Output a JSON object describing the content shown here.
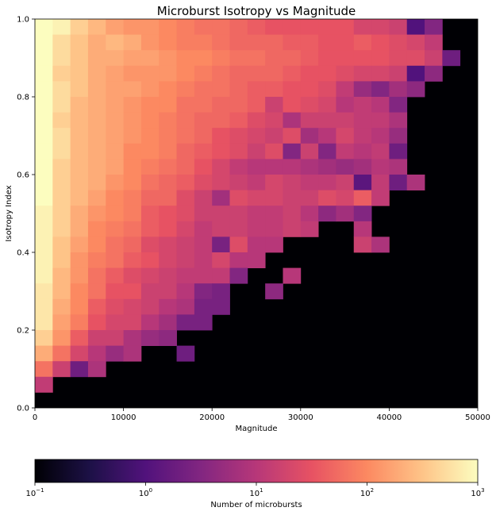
{
  "chart_data": {
    "type": "heatmap",
    "title": "Microburst Isotropy vs Magnitude",
    "xlabel": "Magnitude",
    "ylabel": "Isotropy Index",
    "xlim": [
      0,
      50000
    ],
    "ylim": [
      0,
      1
    ],
    "x_ticks": [
      0,
      10000,
      20000,
      30000,
      40000,
      50000
    ],
    "x_tick_labels": [
      "0",
      "10000",
      "20000",
      "30000",
      "40000",
      "50000"
    ],
    "y_ticks": [
      0.0,
      0.2,
      0.4,
      0.6,
      0.8,
      1.0
    ],
    "y_tick_labels": [
      "0.0",
      "0.2",
      "0.4",
      "0.6",
      "0.8",
      "1.0"
    ],
    "grid": false,
    "x_bins": 25,
    "x_bin_width": 2000,
    "y_bins": 25,
    "y_bin_width": 0.04,
    "colormap": "magma",
    "color_scale": "log",
    "colorbar": {
      "label": "Number of microbursts",
      "range": [
        0.1,
        1000
      ],
      "ticks": [
        0.1,
        1,
        10,
        100,
        1000
      ],
      "tick_bases": [
        "10",
        "10",
        "10",
        "10",
        "10"
      ],
      "tick_exponents": [
        "−1",
        "0",
        "1",
        "2",
        "3"
      ],
      "placement": "bottom"
    },
    "note_rows": "rows[0] is the top row (isotropy 0.96-1.00); each value is log10(count); null = empty (drawn black)",
    "rows_log10": [
      [
        3.0,
        2.9,
        2.6,
        2.4,
        2.2,
        2.1,
        2.1,
        2.0,
        1.9,
        1.8,
        1.8,
        1.7,
        1.6,
        1.5,
        1.5,
        1.5,
        1.5,
        1.5,
        1.3,
        1.3,
        1.2,
        0.0,
        0.5,
        null,
        null
      ],
      [
        3.0,
        2.7,
        2.5,
        2.3,
        2.4,
        2.3,
        2.1,
        2.0,
        1.9,
        1.9,
        1.8,
        1.7,
        1.7,
        1.7,
        1.6,
        1.6,
        1.5,
        1.5,
        1.6,
        1.5,
        1.4,
        1.3,
        1.1,
        null,
        null
      ],
      [
        3.0,
        2.7,
        2.5,
        2.3,
        2.3,
        2.2,
        2.2,
        2.1,
        2.0,
        2.0,
        1.9,
        1.8,
        1.8,
        1.7,
        1.7,
        1.6,
        1.5,
        1.5,
        1.5,
        1.5,
        1.4,
        1.4,
        1.2,
        0.3,
        null
      ],
      [
        3.0,
        2.6,
        2.5,
        2.3,
        2.2,
        2.1,
        2.1,
        2.1,
        2.0,
        1.9,
        1.8,
        1.7,
        1.7,
        1.7,
        1.6,
        1.5,
        1.5,
        1.4,
        1.3,
        1.3,
        1.2,
        0.0,
        0.6,
        null,
        null
      ],
      [
        3.0,
        2.7,
        2.5,
        2.3,
        2.2,
        2.2,
        2.1,
        2.0,
        1.9,
        1.8,
        1.8,
        1.7,
        1.6,
        1.6,
        1.5,
        1.5,
        1.4,
        1.1,
        0.7,
        0.5,
        0.8,
        0.6,
        null,
        null,
        null
      ],
      [
        3.0,
        2.7,
        2.4,
        2.3,
        2.2,
        2.1,
        2.0,
        2.0,
        1.8,
        1.8,
        1.7,
        1.7,
        1.6,
        1.2,
        1.5,
        1.4,
        1.3,
        1.0,
        1.1,
        1.0,
        0.5,
        null,
        null,
        null,
        null
      ],
      [
        3.0,
        2.6,
        2.4,
        2.3,
        2.2,
        2.1,
        2.0,
        1.9,
        1.8,
        1.7,
        1.7,
        1.6,
        1.4,
        1.3,
        0.9,
        1.2,
        1.2,
        1.2,
        1.1,
        1.1,
        0.9,
        null,
        null,
        null,
        null
      ],
      [
        3.0,
        2.7,
        2.4,
        2.3,
        2.2,
        2.1,
        2.0,
        1.9,
        1.8,
        1.7,
        1.5,
        1.4,
        1.3,
        1.2,
        1.4,
        0.8,
        1.0,
        1.3,
        1.1,
        1.0,
        0.7,
        null,
        null,
        null,
        null
      ],
      [
        3.0,
        2.7,
        2.4,
        2.3,
        2.2,
        2.0,
        2.0,
        1.9,
        1.7,
        1.6,
        1.5,
        1.4,
        1.2,
        1.4,
        0.5,
        1.2,
        0.5,
        1.1,
        1.0,
        1.1,
        0.3,
        null,
        null,
        null,
        null
      ],
      [
        3.0,
        2.6,
        2.4,
        2.3,
        2.2,
        2.0,
        1.9,
        1.8,
        1.7,
        1.5,
        1.3,
        1.1,
        1.0,
        1.0,
        1.0,
        0.9,
        0.8,
        0.7,
        0.8,
        1.0,
        0.9,
        null,
        null,
        null,
        null
      ],
      [
        3.0,
        2.6,
        2.4,
        2.3,
        2.1,
        2.0,
        1.8,
        1.7,
        1.6,
        1.4,
        1.3,
        1.2,
        1.1,
        1.3,
        1.2,
        1.1,
        1.1,
        1.2,
        0.1,
        1.1,
        0.3,
        0.9,
        null,
        null,
        null
      ],
      [
        3.0,
        2.6,
        2.4,
        2.2,
        2.0,
        1.9,
        1.7,
        1.7,
        1.4,
        1.2,
        0.8,
        1.4,
        1.3,
        1.3,
        1.2,
        1.2,
        1.4,
        1.3,
        1.6,
        1.1,
        null,
        null,
        null,
        null,
        null
      ],
      [
        2.9,
        2.6,
        2.3,
        2.1,
        2.0,
        1.9,
        1.6,
        1.5,
        1.4,
        1.2,
        1.2,
        1.2,
        1.1,
        1.1,
        1.2,
        1.0,
        0.6,
        0.8,
        0.5,
        null,
        null,
        null,
        null,
        null,
        null
      ],
      [
        2.9,
        2.6,
        2.3,
        2.0,
        1.9,
        1.8,
        1.6,
        1.5,
        1.3,
        1.1,
        1.2,
        1.2,
        1.1,
        1.1,
        1.2,
        1.1,
        null,
        null,
        1.0,
        null,
        null,
        null,
        null,
        null,
        null
      ],
      [
        2.9,
        2.5,
        2.2,
        2.0,
        1.8,
        1.7,
        1.4,
        1.3,
        1.2,
        1.1,
        0.4,
        1.4,
        1.0,
        1.0,
        null,
        null,
        null,
        null,
        1.2,
        0.9,
        null,
        null,
        null,
        null,
        null
      ],
      [
        2.9,
        2.5,
        2.1,
        1.9,
        1.8,
        1.6,
        1.5,
        1.3,
        1.2,
        1.1,
        1.3,
        1.0,
        1.0,
        null,
        null,
        null,
        null,
        null,
        null,
        null,
        null,
        null,
        null,
        null,
        null
      ],
      [
        2.9,
        2.4,
        2.1,
        1.8,
        1.6,
        1.4,
        1.3,
        1.2,
        1.1,
        1.1,
        1.1,
        0.5,
        null,
        null,
        1.0,
        null,
        null,
        null,
        null,
        null,
        null,
        null,
        null,
        null,
        null
      ],
      [
        2.8,
        2.4,
        2.0,
        1.8,
        1.5,
        1.5,
        1.2,
        1.2,
        1.0,
        0.5,
        0.4,
        null,
        null,
        0.6,
        null,
        null,
        null,
        null,
        null,
        null,
        null,
        null,
        null,
        null,
        null
      ],
      [
        2.8,
        2.3,
        2.0,
        1.6,
        1.4,
        1.3,
        1.2,
        1.0,
        0.9,
        0.4,
        0.4,
        null,
        null,
        null,
        null,
        null,
        null,
        null,
        null,
        null,
        null,
        null,
        null,
        null,
        null
      ],
      [
        2.8,
        2.2,
        1.9,
        1.5,
        1.3,
        1.3,
        1.0,
        0.8,
        0.4,
        0.4,
        null,
        null,
        null,
        null,
        null,
        null,
        null,
        null,
        null,
        null,
        null,
        null,
        null,
        null,
        null
      ],
      [
        2.6,
        2.1,
        1.6,
        1.2,
        1.2,
        0.9,
        0.7,
        0.6,
        null,
        null,
        null,
        null,
        null,
        null,
        null,
        null,
        null,
        null,
        null,
        null,
        null,
        null,
        null,
        null,
        null
      ],
      [
        2.3,
        1.8,
        1.3,
        1.0,
        0.7,
        0.9,
        null,
        null,
        0.3,
        null,
        null,
        null,
        null,
        null,
        null,
        null,
        null,
        null,
        null,
        null,
        null,
        null,
        null,
        null,
        null
      ],
      [
        1.8,
        1.2,
        0.3,
        0.9,
        null,
        null,
        null,
        null,
        null,
        null,
        null,
        null,
        null,
        null,
        null,
        null,
        null,
        null,
        null,
        null,
        null,
        null,
        null,
        null,
        null
      ],
      [
        1.1,
        null,
        null,
        null,
        null,
        null,
        null,
        null,
        null,
        null,
        null,
        null,
        null,
        null,
        null,
        null,
        null,
        null,
        null,
        null,
        null,
        null,
        null,
        null,
        null
      ],
      [
        null,
        null,
        null,
        null,
        null,
        null,
        null,
        null,
        null,
        null,
        null,
        null,
        null,
        null,
        null,
        null,
        null,
        null,
        null,
        null,
        null,
        null,
        null,
        null,
        null
      ]
    ]
  }
}
